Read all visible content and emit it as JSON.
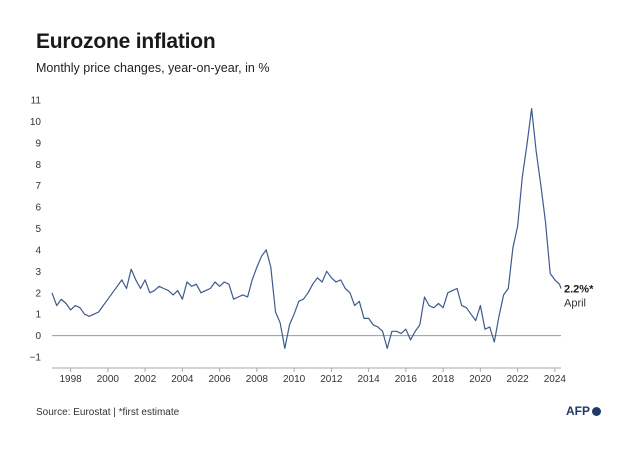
{
  "title": "Eurozone inflation",
  "subtitle": "Monthly price changes, year-on-year, in %",
  "source": "Source: Eurostat | *first estimate",
  "logo_text": "AFP",
  "line_color": "#3d5a8c",
  "chart_data": {
    "type": "line",
    "title": "Eurozone inflation",
    "subtitle": "Monthly price changes, year-on-year, in %",
    "xlabel": "",
    "ylabel": "",
    "ylim": [
      -1,
      11
    ],
    "yticks": [
      -1,
      0,
      1,
      2,
      3,
      4,
      5,
      6,
      7,
      8,
      9,
      10,
      11
    ],
    "ytick_labels": [
      "−1",
      "0",
      "1",
      "2",
      "3",
      "4",
      "5",
      "6",
      "7",
      "8",
      "9",
      "10",
      "11"
    ],
    "xlim": [
      1997.0,
      2024.33
    ],
    "xticks": [
      1998,
      2000,
      2002,
      2004,
      2006,
      2008,
      2010,
      2012,
      2014,
      2016,
      2018,
      2020,
      2022,
      2024
    ],
    "grid": false,
    "zero_line": true,
    "annotation": {
      "value_label": "2.2%*",
      "date_label": "April"
    },
    "series": [
      {
        "points": [
          [
            1997.0,
            2.0
          ],
          [
            1997.25,
            1.4
          ],
          [
            1997.5,
            1.7
          ],
          [
            1997.75,
            1.5
          ],
          [
            1998.0,
            1.2
          ],
          [
            1998.25,
            1.4
          ],
          [
            1998.5,
            1.3
          ],
          [
            1998.75,
            1.0
          ],
          [
            1999.0,
            0.9
          ],
          [
            1999.25,
            1.0
          ],
          [
            1999.5,
            1.1
          ],
          [
            1999.75,
            1.4
          ],
          [
            2000.0,
            1.7
          ],
          [
            2000.25,
            2.0
          ],
          [
            2000.5,
            2.3
          ],
          [
            2000.75,
            2.6
          ],
          [
            2001.0,
            2.2
          ],
          [
            2001.25,
            3.1
          ],
          [
            2001.5,
            2.6
          ],
          [
            2001.75,
            2.2
          ],
          [
            2002.0,
            2.6
          ],
          [
            2002.25,
            2.0
          ],
          [
            2002.5,
            2.1
          ],
          [
            2002.75,
            2.3
          ],
          [
            2003.0,
            2.2
          ],
          [
            2003.25,
            2.1
          ],
          [
            2003.5,
            1.9
          ],
          [
            2003.75,
            2.1
          ],
          [
            2004.0,
            1.7
          ],
          [
            2004.25,
            2.5
          ],
          [
            2004.5,
            2.3
          ],
          [
            2004.75,
            2.4
          ],
          [
            2005.0,
            2.0
          ],
          [
            2005.25,
            2.1
          ],
          [
            2005.5,
            2.2
          ],
          [
            2005.75,
            2.5
          ],
          [
            2006.0,
            2.3
          ],
          [
            2006.25,
            2.5
          ],
          [
            2006.5,
            2.4
          ],
          [
            2006.75,
            1.7
          ],
          [
            2007.0,
            1.8
          ],
          [
            2007.25,
            1.9
          ],
          [
            2007.5,
            1.8
          ],
          [
            2007.75,
            2.6
          ],
          [
            2008.0,
            3.2
          ],
          [
            2008.25,
            3.7
          ],
          [
            2008.5,
            4.0
          ],
          [
            2008.75,
            3.2
          ],
          [
            2009.0,
            1.1
          ],
          [
            2009.25,
            0.6
          ],
          [
            2009.5,
            -0.6
          ],
          [
            2009.75,
            0.5
          ],
          [
            2010.0,
            1.0
          ],
          [
            2010.25,
            1.6
          ],
          [
            2010.5,
            1.7
          ],
          [
            2010.75,
            2.0
          ],
          [
            2011.0,
            2.4
          ],
          [
            2011.25,
            2.7
          ],
          [
            2011.5,
            2.5
          ],
          [
            2011.75,
            3.0
          ],
          [
            2012.0,
            2.7
          ],
          [
            2012.25,
            2.5
          ],
          [
            2012.5,
            2.6
          ],
          [
            2012.75,
            2.2
          ],
          [
            2013.0,
            2.0
          ],
          [
            2013.25,
            1.4
          ],
          [
            2013.5,
            1.6
          ],
          [
            2013.75,
            0.8
          ],
          [
            2014.0,
            0.8
          ],
          [
            2014.25,
            0.5
          ],
          [
            2014.5,
            0.4
          ],
          [
            2014.75,
            0.2
          ],
          [
            2015.0,
            -0.6
          ],
          [
            2015.25,
            0.2
          ],
          [
            2015.5,
            0.2
          ],
          [
            2015.75,
            0.1
          ],
          [
            2016.0,
            0.3
          ],
          [
            2016.25,
            -0.2
          ],
          [
            2016.5,
            0.2
          ],
          [
            2016.75,
            0.5
          ],
          [
            2017.0,
            1.8
          ],
          [
            2017.25,
            1.4
          ],
          [
            2017.5,
            1.3
          ],
          [
            2017.75,
            1.5
          ],
          [
            2018.0,
            1.3
          ],
          [
            2018.25,
            2.0
          ],
          [
            2018.5,
            2.1
          ],
          [
            2018.75,
            2.2
          ],
          [
            2019.0,
            1.4
          ],
          [
            2019.25,
            1.3
          ],
          [
            2019.5,
            1.0
          ],
          [
            2019.75,
            0.7
          ],
          [
            2020.0,
            1.4
          ],
          [
            2020.25,
            0.3
          ],
          [
            2020.5,
            0.4
          ],
          [
            2020.75,
            -0.3
          ],
          [
            2021.0,
            0.9
          ],
          [
            2021.25,
            1.9
          ],
          [
            2021.5,
            2.2
          ],
          [
            2021.75,
            4.1
          ],
          [
            2022.0,
            5.1
          ],
          [
            2022.25,
            7.4
          ],
          [
            2022.5,
            8.9
          ],
          [
            2022.75,
            10.6
          ],
          [
            2023.0,
            8.6
          ],
          [
            2023.25,
            7.0
          ],
          [
            2023.5,
            5.3
          ],
          [
            2023.75,
            2.9
          ],
          [
            2024.0,
            2.6
          ],
          [
            2024.25,
            2.4
          ],
          [
            2024.33,
            2.2
          ]
        ]
      }
    ]
  }
}
